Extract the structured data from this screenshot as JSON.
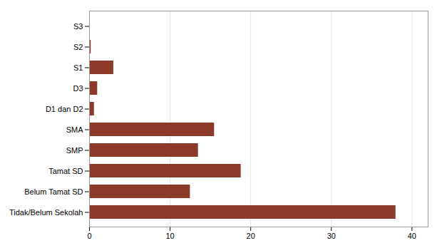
{
  "chart_data": {
    "type": "bar",
    "orientation": "horizontal",
    "categories": [
      "Tidak/Belum Sekolah",
      "Belum Tamat SD",
      "Tamat SD",
      "SMP",
      "SMA",
      "D1 dan D2",
      "D3",
      "S1",
      "S2",
      "S3"
    ],
    "values": [
      38.0,
      12.5,
      18.8,
      13.5,
      15.5,
      0.6,
      1.0,
      3.0,
      0.2,
      0.02
    ],
    "color": "#8B3A2A",
    "xlim": [
      0,
      42
    ],
    "xticks": [
      0,
      10,
      20,
      30,
      40
    ],
    "grid": true
  }
}
